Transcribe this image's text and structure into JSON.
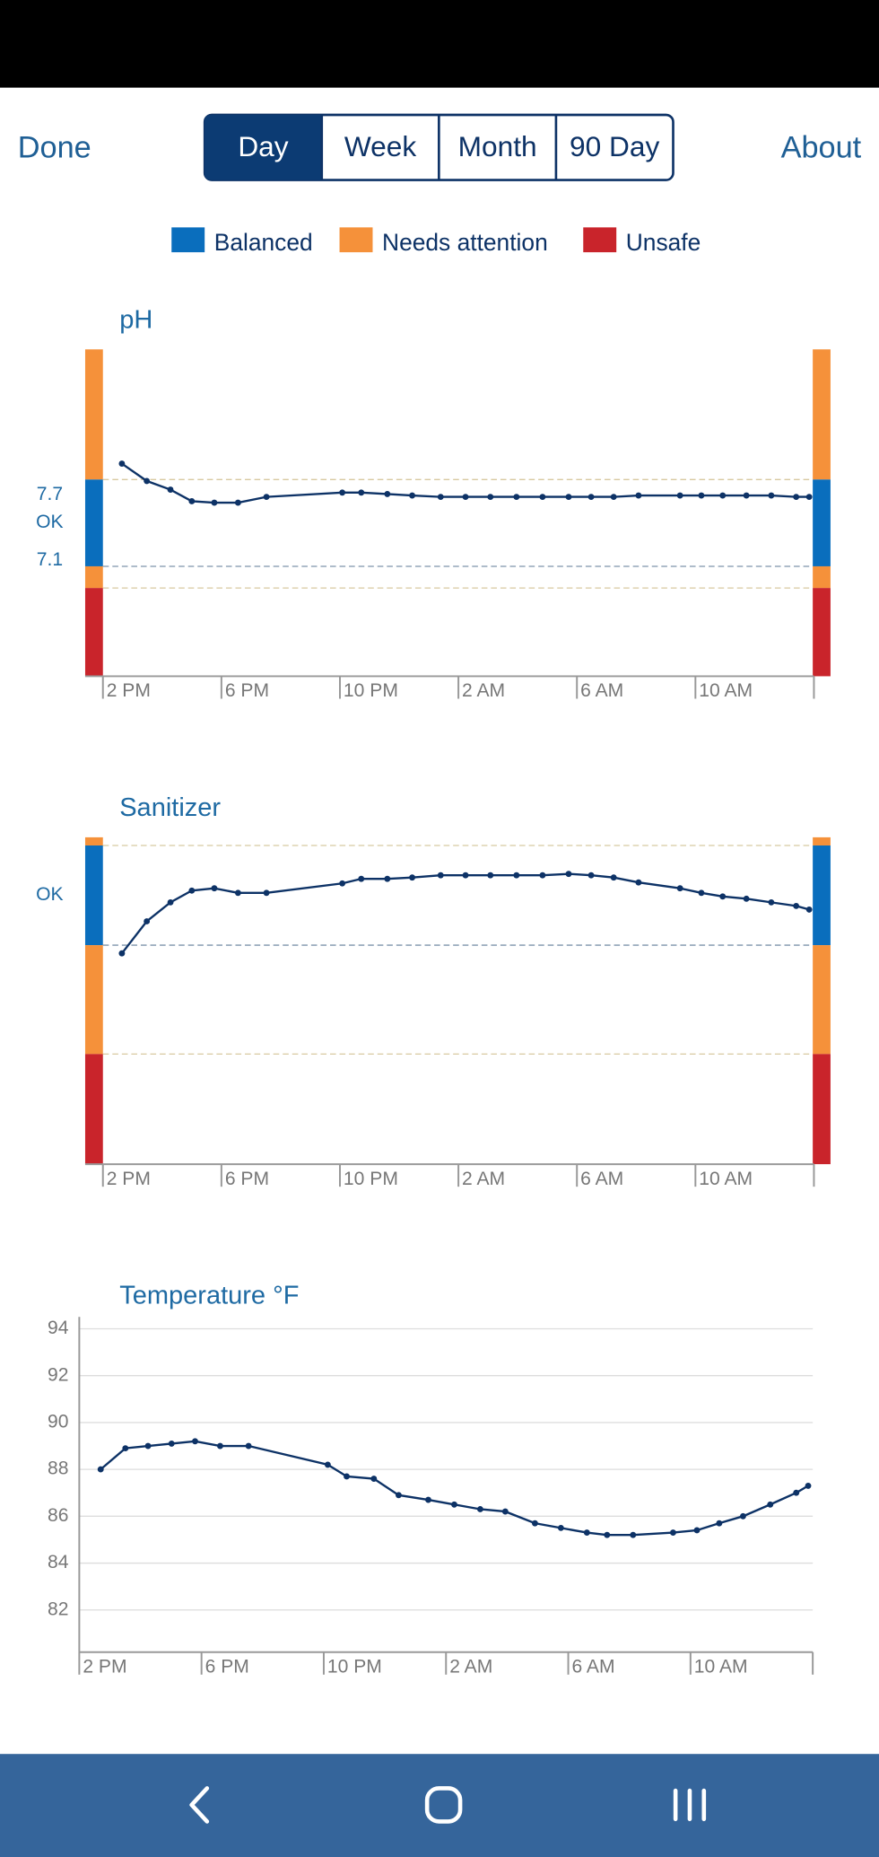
{
  "header": {
    "done": "Done",
    "tabs": [
      "Day",
      "Week",
      "Month",
      "90 Day"
    ],
    "selected_tab": 0,
    "about": "About"
  },
  "legend": [
    {
      "name": "Balanced",
      "color": "#0a6ebd"
    },
    {
      "name": "Needs attention",
      "color": "#f5913a"
    },
    {
      "name": "Unsafe",
      "color": "#c9242b"
    }
  ],
  "chart_data": [
    {
      "type": "line",
      "title": "pH",
      "color": "#0d3266",
      "x": [
        0.64,
        1.48,
        2.28,
        3.0,
        3.76,
        4.56,
        5.52,
        8.08,
        8.72,
        9.6,
        10.44,
        11.4,
        12.24,
        13.08,
        13.96,
        14.84,
        15.72,
        16.48,
        17.24,
        18.08,
        19.48,
        20.2,
        20.92,
        21.72,
        22.56,
        23.4,
        23.84
      ],
      "values": [
        7.81,
        7.69,
        7.63,
        7.55,
        7.54,
        7.54,
        7.58,
        7.61,
        7.61,
        7.6,
        7.59,
        7.58,
        7.58,
        7.58,
        7.58,
        7.58,
        7.58,
        7.58,
        7.58,
        7.59,
        7.59,
        7.59,
        7.59,
        7.59,
        7.59,
        7.58,
        7.58
      ],
      "xlim": [
        0,
        24
      ],
      "xticks": [
        {
          "value": 0,
          "label": "2 PM"
        },
        {
          "value": 4,
          "label": "6 PM"
        },
        {
          "value": 8,
          "label": "10 PM"
        },
        {
          "value": 12,
          "label": "2 AM"
        },
        {
          "value": 16,
          "label": "6 AM"
        },
        {
          "value": 20,
          "label": "10 AM"
        }
      ],
      "ylim": [
        6.34,
        8.6
      ],
      "yticks": [
        7.7,
        7.1
      ],
      "band_label": "OK",
      "bands": [
        {
          "from": 8.6,
          "to": 7.7,
          "color": "#f5913a"
        },
        {
          "from": 7.7,
          "to": 7.1,
          "color": "#0a6ebd"
        },
        {
          "from": 7.1,
          "to": 6.95,
          "color": "#f5913a"
        },
        {
          "from": 6.95,
          "to": 6.34,
          "color": "#c9242b"
        }
      ]
    },
    {
      "type": "line",
      "title": "Sanitizer",
      "color": "#0d3266",
      "x": [
        0.64,
        1.48,
        2.28,
        3.0,
        3.76,
        4.56,
        5.52,
        8.08,
        8.72,
        9.6,
        10.44,
        11.4,
        12.24,
        13.08,
        13.96,
        14.84,
        15.72,
        16.48,
        17.24,
        18.08,
        19.48,
        20.2,
        20.92,
        21.72,
        22.56,
        23.4,
        23.84
      ],
      "values": [
        64.5,
        74.3,
        80.1,
        83.7,
        84.4,
        83.0,
        83.0,
        85.9,
        87.3,
        87.3,
        87.7,
        88.4,
        88.4,
        88.4,
        88.4,
        88.4,
        88.8,
        88.4,
        87.7,
        86.2,
        84.4,
        83.0,
        81.9,
        81.2,
        80.1,
        79.0,
        77.9
      ],
      "xlim": [
        0,
        24
      ],
      "xticks": [
        {
          "value": 0,
          "label": "2 PM"
        },
        {
          "value": 4,
          "label": "6 PM"
        },
        {
          "value": 8,
          "label": "10 PM"
        },
        {
          "value": 12,
          "label": "2 AM"
        },
        {
          "value": 16,
          "label": "6 AM"
        },
        {
          "value": 20,
          "label": "10 AM"
        }
      ],
      "ylim": [
        0,
        100
      ],
      "band_label": "OK",
      "bands": [
        {
          "from": 100,
          "to": 97.5,
          "color": "#f5913a"
        },
        {
          "from": 97.5,
          "to": 67.0,
          "color": "#0a6ebd"
        },
        {
          "from": 67.0,
          "to": 33.7,
          "color": "#f5913a"
        },
        {
          "from": 33.7,
          "to": 0,
          "color": "#c9242b"
        }
      ]
    },
    {
      "type": "line",
      "title": "Temperature °F",
      "color": "#0d3266",
      "x": [
        0.7,
        1.51,
        2.25,
        3.02,
        3.79,
        4.61,
        5.54,
        8.13,
        8.75,
        9.64,
        10.45,
        11.42,
        12.27,
        13.12,
        13.94,
        14.91,
        15.76,
        16.61,
        17.27,
        18.12,
        19.43,
        20.21,
        20.94,
        21.72,
        22.61,
        23.46,
        23.85
      ],
      "values": [
        88.0,
        88.9,
        89.0,
        89.1,
        89.2,
        89.0,
        89.0,
        88.2,
        87.7,
        87.6,
        86.9,
        86.7,
        86.5,
        86.3,
        86.2,
        85.7,
        85.5,
        85.3,
        85.2,
        85.2,
        85.3,
        85.4,
        85.7,
        86.0,
        86.5,
        87.0,
        87.3
      ],
      "xlim": [
        0,
        24
      ],
      "xticks": [
        {
          "value": 0,
          "label": "2 PM"
        },
        {
          "value": 4,
          "label": "6 PM"
        },
        {
          "value": 8,
          "label": "10 PM"
        },
        {
          "value": 12,
          "label": "2 AM"
        },
        {
          "value": 16,
          "label": "6 AM"
        },
        {
          "value": 20,
          "label": "10 AM"
        }
      ],
      "ylim": [
        80.2,
        94
      ],
      "yticks": [
        94,
        92,
        90,
        88,
        86,
        84,
        82
      ],
      "grid": true
    }
  ]
}
